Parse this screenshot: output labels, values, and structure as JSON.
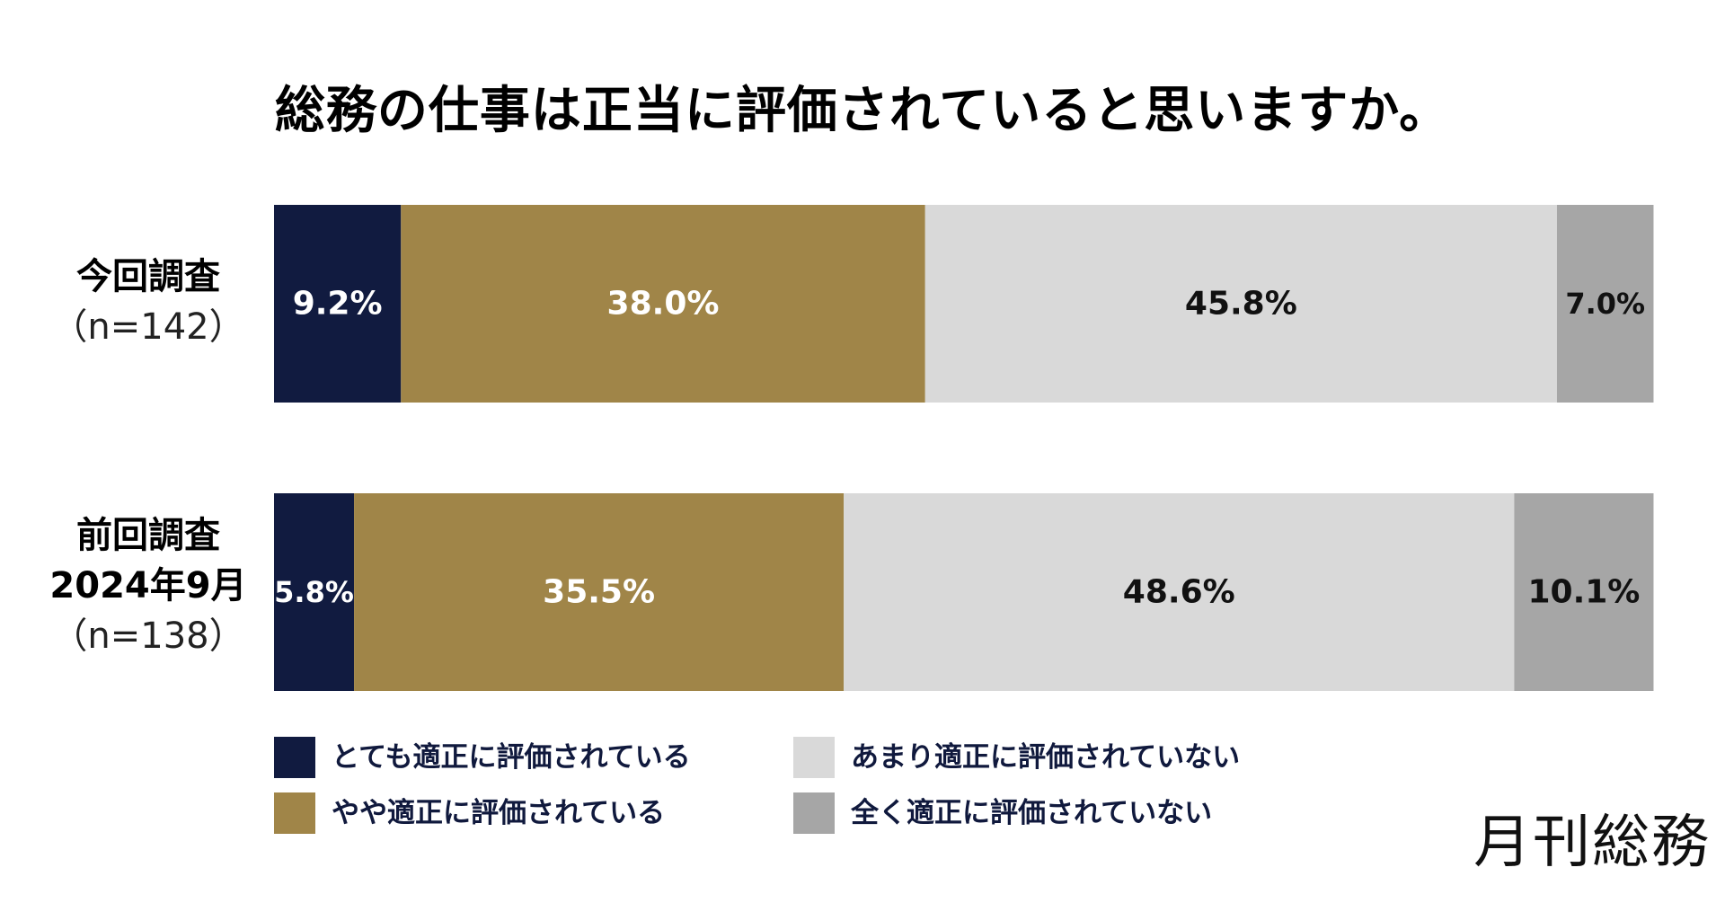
{
  "title": "総務の仕事は正当に評価されていると思いますか。",
  "rows": [
    {
      "label": "今回調査",
      "sub1": "（n=142）",
      "sub2": ""
    },
    {
      "label": "前回調査",
      "sub1": "2024年9月",
      "sub2": "（n=138）"
    }
  ],
  "legend": [
    {
      "label": "とても適正に評価されている",
      "color": "#111b40"
    },
    {
      "label": "やや適正に評価されている",
      "color": "#a08548"
    },
    {
      "label": "あまり適正に評価されていない",
      "color": "#d9d9d9"
    },
    {
      "label": "全く適正に評価されていない",
      "color": "#a6a6a6"
    }
  ],
  "logo": "月刊総務",
  "chart_data": {
    "type": "bar",
    "orientation": "horizontal",
    "stacked": true,
    "normalized_percent": true,
    "categories": [
      "今回調査（n=142）",
      "前回調査 2024年9月（n=138）"
    ],
    "series": [
      {
        "name": "とても適正に評価されている",
        "values": [
          9.2,
          5.8
        ],
        "labels": [
          "9.2%",
          "5.8%"
        ],
        "color": "#111b40",
        "text_color": "#ffffff"
      },
      {
        "name": "やや適正に評価されている",
        "values": [
          38.0,
          35.5
        ],
        "labels": [
          "38.0%",
          "35.5%"
        ],
        "color": "#a08548",
        "text_color": "#ffffff"
      },
      {
        "name": "あまり適正に評価されていない",
        "values": [
          45.8,
          48.6
        ],
        "labels": [
          "45.8%",
          "48.6%"
        ],
        "color": "#d9d9d9",
        "text_color": "#111111"
      },
      {
        "name": "全く適正に評価されていない",
        "values": [
          7.0,
          10.1
        ],
        "labels": [
          "7.0%",
          "10.1%"
        ],
        "color": "#a6a6a6",
        "text_color": "#111111"
      }
    ],
    "xlim": [
      0,
      100.1
    ],
    "legend_position": "bottom",
    "grid": false
  }
}
